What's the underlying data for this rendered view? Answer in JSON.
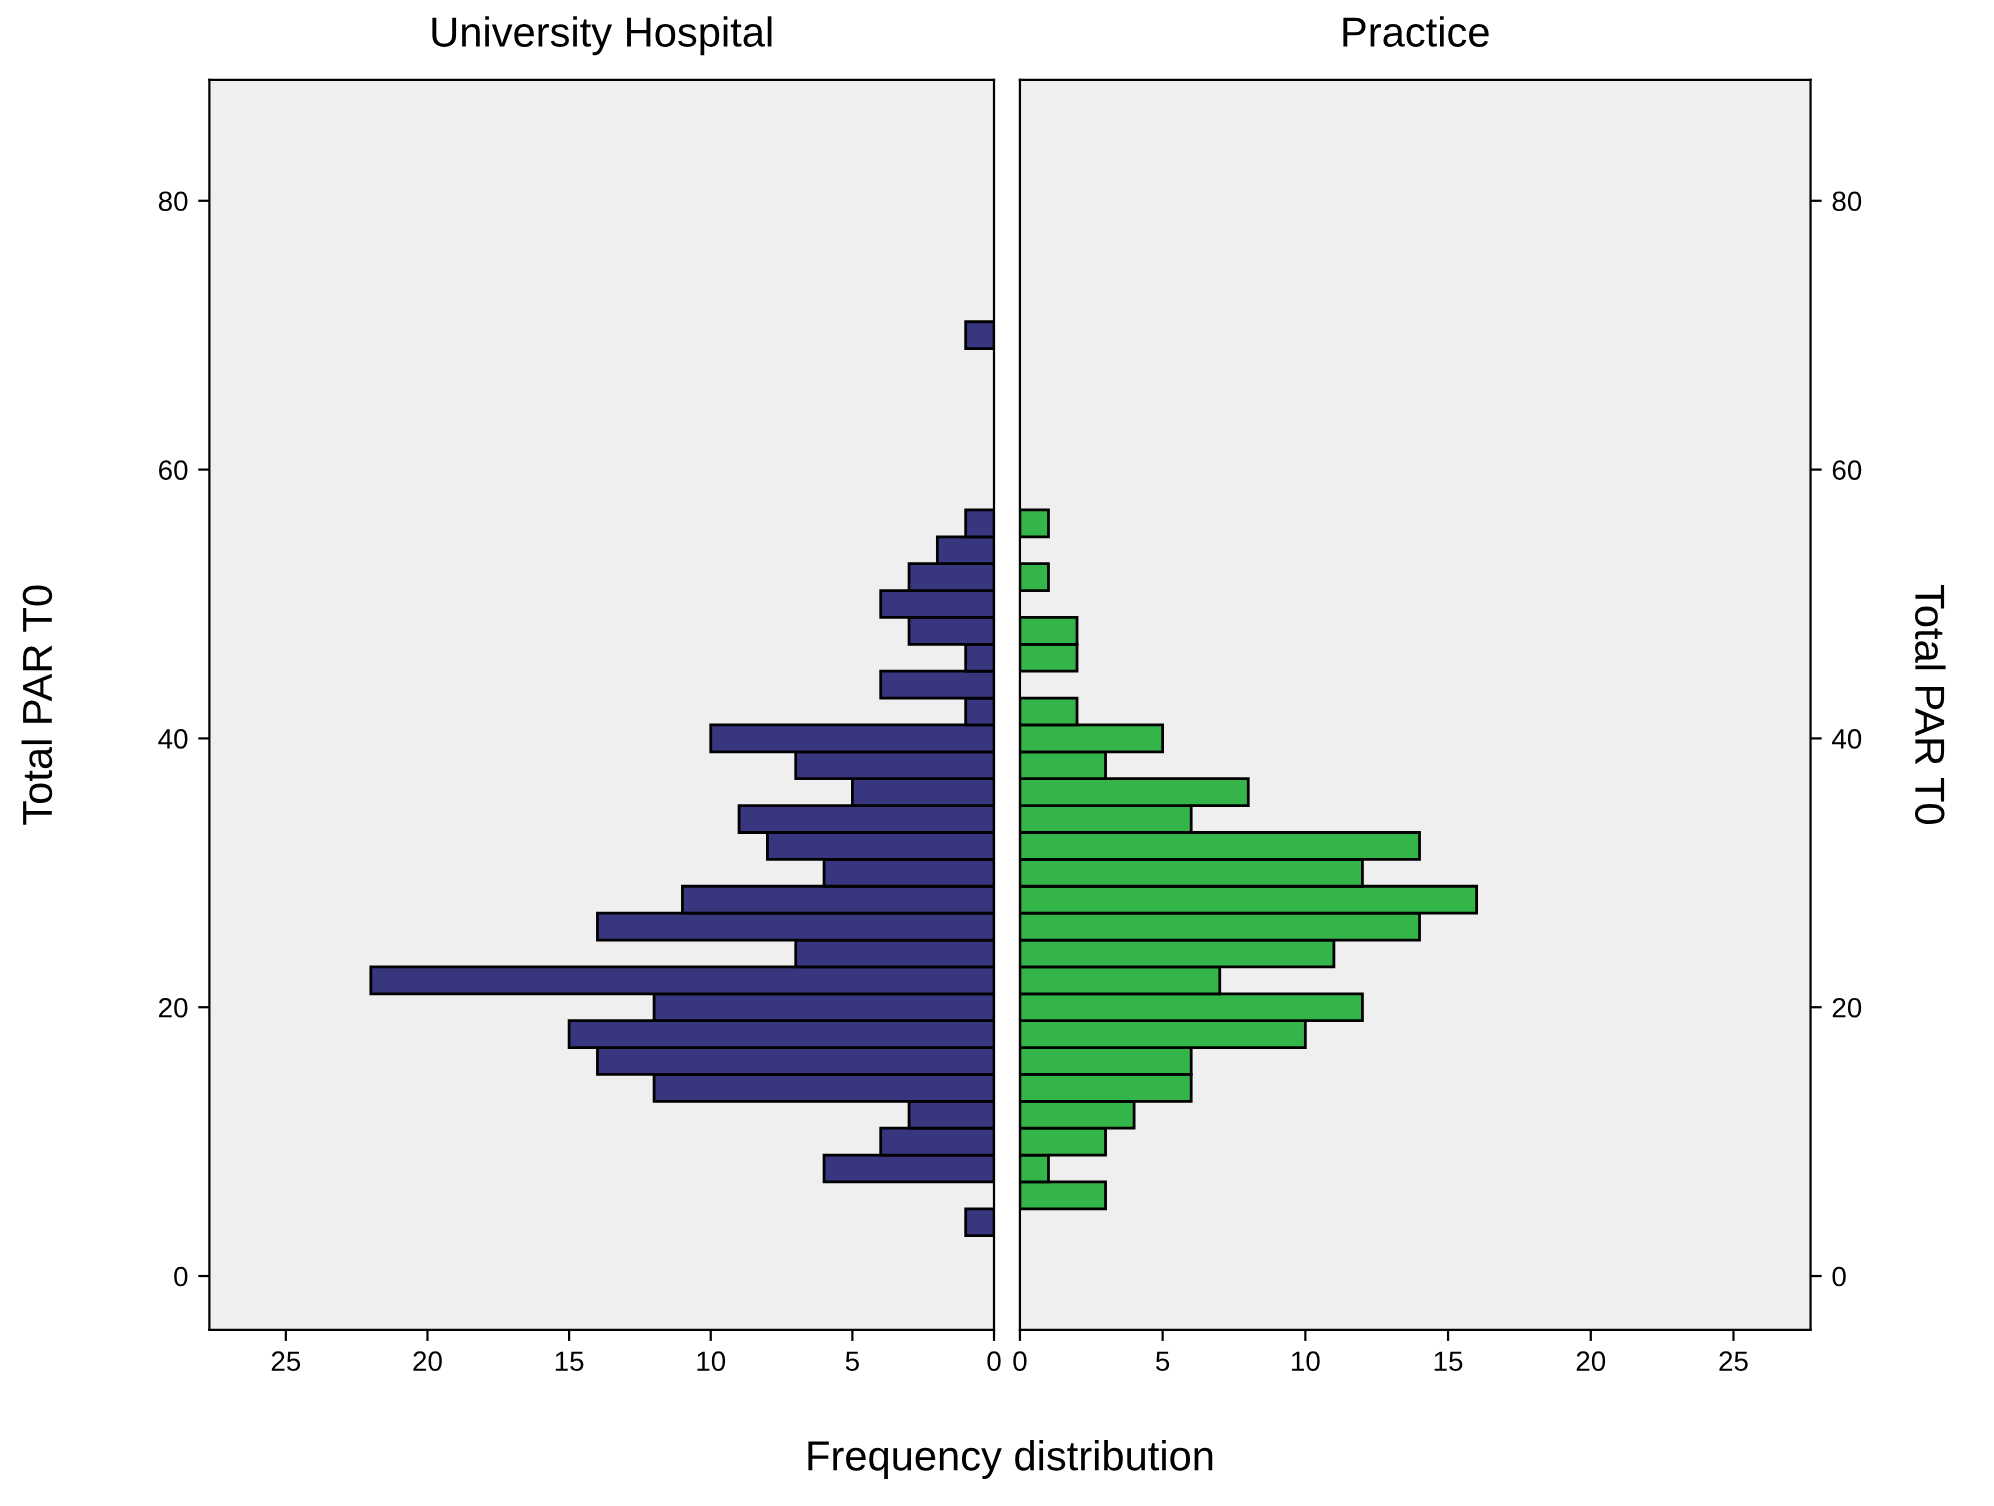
{
  "chart_data": [
    {
      "type": "histogram",
      "orientation": "horizontal",
      "title": "University Hospital",
      "xlabel": "Frequency distribution",
      "ylabel": "Total PAR T0",
      "bins": [
        3,
        5,
        7,
        9,
        11,
        13,
        15,
        17,
        19,
        21,
        23,
        25,
        27,
        29,
        31,
        33,
        35,
        37,
        39,
        41,
        43,
        45,
        47,
        49,
        51,
        53,
        55,
        57,
        59,
        61,
        63,
        65,
        67,
        69,
        71
      ],
      "values": [
        1,
        0,
        6,
        4,
        3,
        12,
        14,
        15,
        12,
        22,
        7,
        14,
        11,
        6,
        8,
        9,
        5,
        7,
        10,
        1,
        4,
        1,
        3,
        4,
        3,
        2,
        1,
        0,
        0,
        0,
        0,
        0,
        0,
        1
      ],
      "color": "#393680",
      "xlim": [
        27.7,
        0
      ],
      "xticks": [
        0,
        5,
        10,
        15,
        20,
        25
      ],
      "ylim": [
        -4,
        89
      ],
      "yticks": [
        0,
        20,
        40,
        60,
        80
      ],
      "grid": false
    },
    {
      "type": "histogram",
      "orientation": "horizontal",
      "title": "Practice",
      "ylabel": "Total PAR T0",
      "bins": [
        3,
        5,
        7,
        9,
        11,
        13,
        15,
        17,
        19,
        21,
        23,
        25,
        27,
        29,
        31,
        33,
        35,
        37,
        39,
        41,
        43,
        45,
        47,
        49,
        51,
        53,
        55,
        57,
        59,
        61,
        63,
        65,
        67,
        69,
        71
      ],
      "values": [
        0,
        3,
        1,
        3,
        4,
        6,
        6,
        10,
        12,
        7,
        11,
        14,
        16,
        12,
        14,
        6,
        8,
        3,
        5,
        2,
        0,
        2,
        2,
        0,
        1,
        0,
        1,
        0,
        0,
        0,
        0,
        0,
        0,
        0
      ],
      "color": "#33b54a",
      "xlim": [
        0,
        27.7
      ],
      "xticks": [
        0,
        5,
        10,
        15,
        20,
        25
      ],
      "ylim": [
        -4,
        89
      ],
      "yticks": [
        0,
        20,
        40,
        60,
        80
      ],
      "grid": false
    }
  ]
}
